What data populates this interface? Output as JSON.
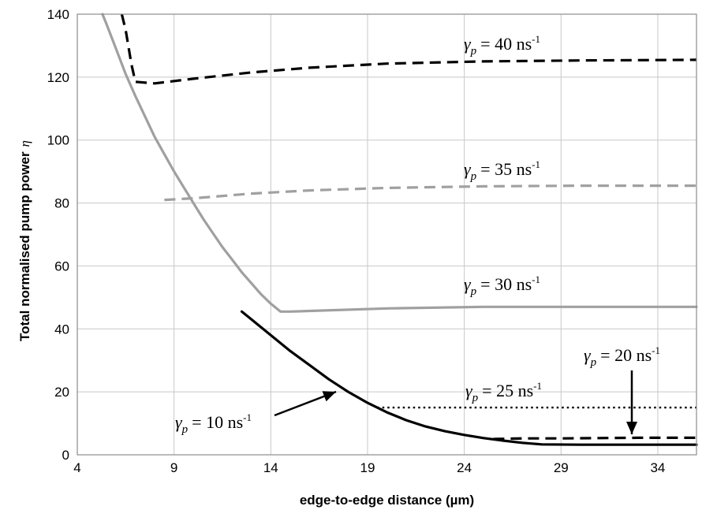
{
  "chart_data": {
    "type": "line",
    "xlabel": "edge-to-edge distance (µm)",
    "ylabel": "Total normalised pump power",
    "ylabel_symbol": "η",
    "xlim": [
      4,
      36
    ],
    "ylim": [
      0,
      140
    ],
    "xticks": [
      4,
      9,
      14,
      19,
      24,
      29,
      34
    ],
    "yticks": [
      0,
      20,
      40,
      60,
      80,
      100,
      120,
      140
    ],
    "grid": true,
    "legend": "none",
    "series": [
      {
        "style": "solid",
        "color": "#000000",
        "points": [
          [
            12.5,
            45.5
          ],
          [
            13,
            43
          ],
          [
            14,
            38
          ],
          [
            15,
            33
          ],
          [
            16,
            28.5
          ],
          [
            17,
            24
          ],
          [
            17.5,
            22
          ],
          [
            18,
            20
          ],
          [
            19,
            16.5
          ],
          [
            20,
            13.5
          ],
          [
            21,
            11
          ],
          [
            22,
            9
          ],
          [
            23,
            7.5
          ],
          [
            24,
            6.3
          ],
          [
            25,
            5.3
          ],
          [
            26,
            4.5
          ],
          [
            27,
            3.8
          ],
          [
            28,
            3.3
          ],
          [
            30,
            3.2
          ],
          [
            32,
            3.2
          ],
          [
            34,
            3.2
          ],
          [
            36,
            3.2
          ]
        ]
      },
      {
        "style": "dashed",
        "color": "#000000",
        "points": [
          [
            25.5,
            5
          ],
          [
            27,
            5.2
          ],
          [
            29,
            5.2
          ],
          [
            31,
            5.3
          ],
          [
            33,
            5.4
          ],
          [
            35,
            5.4
          ],
          [
            36,
            5.4
          ]
        ]
      },
      {
        "style": "dotted",
        "color": "#000000",
        "points": [
          [
            19.5,
            15
          ],
          [
            21,
            15
          ],
          [
            24,
            15
          ],
          [
            27,
            15
          ],
          [
            30,
            15
          ],
          [
            33,
            15
          ],
          [
            36,
            15
          ]
        ]
      },
      {
        "style": "solid",
        "color": "#a0a0a0",
        "points": [
          [
            5.3,
            140
          ],
          [
            5.5,
            137
          ],
          [
            6,
            129
          ],
          [
            6.5,
            121
          ],
          [
            7,
            114
          ],
          [
            7.5,
            107.5
          ],
          [
            8,
            101
          ],
          [
            8.5,
            95.5
          ],
          [
            9,
            90
          ],
          [
            9.5,
            85
          ],
          [
            10,
            80
          ],
          [
            10.5,
            75
          ],
          [
            11,
            70.5
          ],
          [
            11.5,
            66
          ],
          [
            12,
            62
          ],
          [
            12.5,
            58
          ],
          [
            13,
            54.5
          ],
          [
            13.5,
            51
          ],
          [
            14,
            48
          ],
          [
            14.5,
            45.5
          ],
          [
            15,
            45.5
          ],
          [
            20,
            46.5
          ],
          [
            25,
            47
          ],
          [
            30,
            47
          ],
          [
            36,
            47
          ]
        ]
      },
      {
        "style": "dashed",
        "color": "#a0a0a0",
        "points": [
          [
            8.5,
            81
          ],
          [
            10,
            81.5
          ],
          [
            13,
            83
          ],
          [
            16,
            84
          ],
          [
            20,
            84.8
          ],
          [
            25,
            85.3
          ],
          [
            30,
            85.5
          ],
          [
            36,
            85.5
          ]
        ]
      },
      {
        "style": "dashed",
        "color": "#000000",
        "points": [
          [
            6.3,
            140
          ],
          [
            6.5,
            135
          ],
          [
            6.8,
            124
          ],
          [
            7,
            118.5
          ],
          [
            8,
            118
          ],
          [
            10,
            119.5
          ],
          [
            13,
            121.5
          ],
          [
            16,
            123
          ],
          [
            20,
            124.3
          ],
          [
            25,
            125
          ],
          [
            30,
            125.3
          ],
          [
            36,
            125.5
          ]
        ]
      }
    ],
    "annotations": [
      {
        "gamma": "γ",
        "sub": "p",
        "value": "= 40 ns",
        "sup": "-1"
      },
      {
        "gamma": "γ",
        "sub": "p",
        "value": "= 35 ns",
        "sup": "-1"
      },
      {
        "gamma": "γ",
        "sub": "p",
        "value": "= 30 ns",
        "sup": "-1"
      },
      {
        "gamma": "γ",
        "sub": "p",
        "value": "= 25 ns",
        "sup": "-1"
      },
      {
        "gamma": "γ",
        "sub": "p",
        "value": "= 20 ns",
        "sup": "-1"
      },
      {
        "gamma": "γ",
        "sub": "p",
        "value": "= 10 ns",
        "sup": "-1"
      }
    ]
  }
}
